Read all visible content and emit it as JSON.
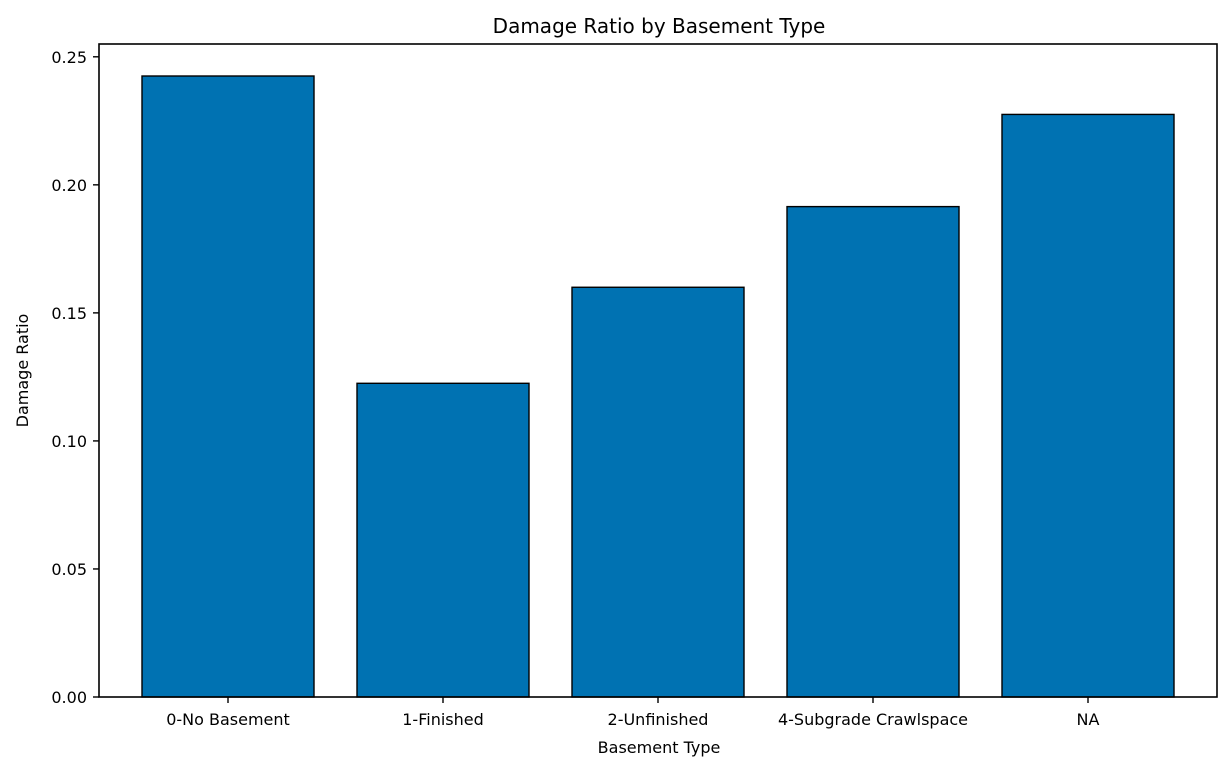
{
  "chart_data": {
    "type": "bar",
    "title": "Damage Ratio by Basement Type",
    "xlabel": "Basement Type",
    "ylabel": "Damage Ratio",
    "categories": [
      "0-No Basement",
      "1-Finished",
      "2-Unfinished",
      "4-Subgrade Crawlspace",
      "NA"
    ],
    "values": [
      0.2425,
      0.1225,
      0.16,
      0.1915,
      0.2275
    ],
    "ylim": [
      0,
      0.255
    ],
    "yticks": [
      0.0,
      0.05,
      0.1,
      0.15,
      0.2,
      0.25
    ],
    "ytick_labels": [
      "0.00",
      "0.05",
      "0.10",
      "0.15",
      "0.20",
      "0.25"
    ],
    "grid": false,
    "bar_color": "#0072b2",
    "edge_color": "#000000"
  }
}
